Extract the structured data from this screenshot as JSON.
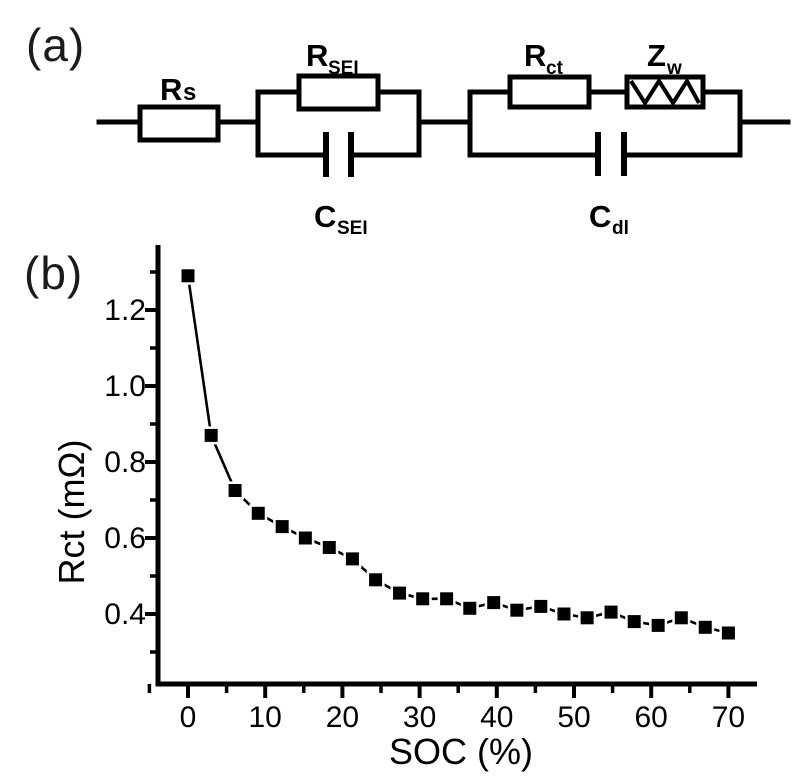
{
  "figure": {
    "panel_a_label": "(a)",
    "panel_b_label": "(b)"
  },
  "circuit": {
    "series_resistor": {
      "symbol": "R",
      "subscript": "s"
    },
    "sei_resistor": {
      "symbol": "R",
      "subscript": "SEI"
    },
    "sei_capacitor": {
      "symbol": "C",
      "subscript": "SEI"
    },
    "charge_transfer_resistor": {
      "symbol": "R",
      "subscript": "ct"
    },
    "warburg_element": {
      "symbol": "Z",
      "subscript": "w"
    },
    "double_layer_capacitor": {
      "symbol": "C",
      "subscript": "dl"
    }
  },
  "chart_data": {
    "type": "scatter",
    "series_name": "Rct",
    "x": [
      0,
      3,
      6.1,
      9.1,
      12.2,
      15.2,
      18.3,
      21.3,
      24.3,
      27.4,
      30.4,
      33.5,
      36.5,
      39.6,
      42.6,
      45.7,
      48.7,
      51.7,
      54.8,
      57.8,
      60.9,
      63.9,
      67,
      70
    ],
    "y": [
      1.29,
      0.87,
      0.725,
      0.665,
      0.63,
      0.6,
      0.575,
      0.545,
      0.49,
      0.455,
      0.44,
      0.44,
      0.415,
      0.43,
      0.41,
      0.42,
      0.4,
      0.39,
      0.405,
      0.38,
      0.37,
      0.39,
      0.365,
      0.35
    ],
    "xlabel": "SOC (%)",
    "ylabel": "Rct (mΩ)",
    "xlim": [
      -4,
      73.5
    ],
    "ylim": [
      0.21,
      1.37
    ],
    "x_major_tick_values": [
      0,
      10,
      20,
      30,
      40,
      50,
      60,
      70
    ],
    "x_major_tick_labels": [
      "0",
      "10",
      "20",
      "30",
      "40",
      "50",
      "60",
      "70"
    ],
    "x_minor_tick_values": [
      -5,
      5,
      15,
      25,
      35,
      45,
      55,
      65
    ],
    "y_major_tick_values": [
      0.4,
      0.6,
      0.8,
      1.0,
      1.2
    ],
    "y_major_tick_labels": [
      "0.4",
      "0.6",
      "0.8",
      "1.0",
      "1.2"
    ],
    "y_minor_tick_values": [
      0.3,
      0.5,
      0.7,
      0.9,
      1.1,
      1.3
    ],
    "marker": "square",
    "marker_color": "#000000",
    "line_color": "#000000",
    "line_style": "solid-with-marker-halo",
    "grid": false,
    "legend": false
  }
}
